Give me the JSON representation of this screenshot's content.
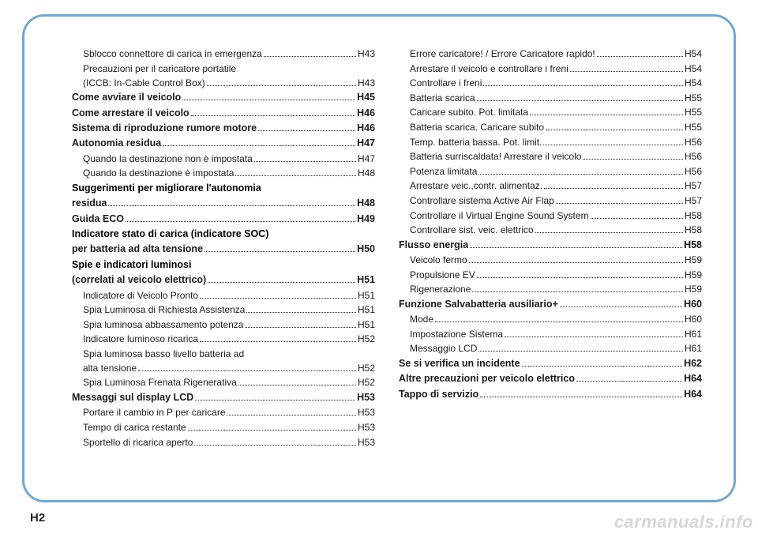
{
  "pageNumber": "H2",
  "watermark": "carmanuals.info",
  "frame_border_color": "#6fa8d6",
  "text_color": "#1a1a1a",
  "left": [
    {
      "type": "sub",
      "label": "Sblocco connettore di carica in emergenza",
      "page": "H43"
    },
    {
      "type": "sub-cont",
      "lines": [
        "Precauzioni per il caricatore portatile"
      ],
      "lastLabel": "(ICCB: In-Cable Control Box)",
      "page": "H43"
    },
    {
      "type": "main",
      "label": "Come avviare il veicolo",
      "page": "H45"
    },
    {
      "type": "main",
      "label": "Come arrestare il veicolo",
      "page": "H46"
    },
    {
      "type": "main",
      "label": "Sistema di riproduzione rumore motore",
      "page": "H46"
    },
    {
      "type": "main",
      "label": "Autonomia residua",
      "page": "H47"
    },
    {
      "type": "sub",
      "label": "Quando la destinazione non è impostata",
      "page": "H47"
    },
    {
      "type": "sub",
      "label": "Quando la destinazione è impostata",
      "page": "H48"
    },
    {
      "type": "main-cont",
      "lines": [
        "Suggerimenti per migliorare l'autonomia"
      ],
      "lastLabel": "residua",
      "page": "H48"
    },
    {
      "type": "main",
      "label": "Guida ECO",
      "page": "H49"
    },
    {
      "type": "main-cont",
      "lines": [
        "Indicatore stato di carica (indicatore SOC)"
      ],
      "lastLabel": "per batteria ad alta tensione",
      "page": "H50"
    },
    {
      "type": "main-cont",
      "lines": [
        "Spie e indicatori luminosi"
      ],
      "lastLabel": "(correlati al veicolo elettrico)",
      "page": "H51"
    },
    {
      "type": "sub",
      "label": "Indicatore di Veicolo Pronto",
      "page": "H51"
    },
    {
      "type": "sub",
      "label": "Spia Luminosa di Richiesta Assistenza",
      "page": "H51"
    },
    {
      "type": "sub",
      "label": "Spia luminosa abbassamento potenza ",
      "page": "H51"
    },
    {
      "type": "sub",
      "label": "Indicatore luminoso ricarica",
      "page": "H52"
    },
    {
      "type": "sub-cont",
      "lines": [
        "Spia luminosa basso livello batteria ad"
      ],
      "lastLabel": "alta tensione",
      "page": "H52"
    },
    {
      "type": "sub",
      "label": "Spia Luminosa Frenata Rigenerativa",
      "page": "H52"
    },
    {
      "type": "main",
      "label": "Messaggi sul display LCD",
      "page": "H53"
    },
    {
      "type": "sub",
      "label": "Portare il cambio in P per caricare",
      "page": "H53"
    },
    {
      "type": "sub",
      "label": "Tempo di carica restante",
      "page": "H53"
    },
    {
      "type": "sub",
      "label": "Sportello di ricarica aperto",
      "page": "H53"
    }
  ],
  "right": [
    {
      "type": "sub",
      "label": "Errore caricatore! / Errore Caricatore rapido!",
      "page": "H54"
    },
    {
      "type": "sub",
      "label": "Arrestare il veicolo e controllare i freni",
      "page": "H54"
    },
    {
      "type": "sub",
      "label": "Controllare i freni",
      "page": "H54"
    },
    {
      "type": "sub",
      "label": "Batteria scarica",
      "page": "H55"
    },
    {
      "type": "sub",
      "label": "Caricare subito. Pot. limitata",
      "page": "H55"
    },
    {
      "type": "sub",
      "label": "Batteria scarica. Caricare subito",
      "page": "H55"
    },
    {
      "type": "sub",
      "label": "Temp. batteria bassa. Pot. limit.",
      "page": "H56"
    },
    {
      "type": "sub",
      "label": "Batteria surriscaldata! Arrestare il veicolo",
      "page": "H56"
    },
    {
      "type": "sub",
      "label": "Potenza limitata",
      "page": "H56"
    },
    {
      "type": "sub",
      "label": "Arrestare veic.,contr. alimentaz.",
      "page": "H57"
    },
    {
      "type": "sub",
      "label": "Controllare sistema Active Air Flap",
      "page": "H57"
    },
    {
      "type": "sub",
      "label": "Controllare il Virtual Engine Sound System",
      "page": "H58"
    },
    {
      "type": "sub",
      "label": "Controllare sist. veic. elettrico",
      "page": "H58"
    },
    {
      "type": "main",
      "label": "Flusso energia",
      "page": "H58"
    },
    {
      "type": "sub",
      "label": "Veicolo fermo",
      "page": "H59"
    },
    {
      "type": "sub",
      "label": "Propulsione EV",
      "page": "H59"
    },
    {
      "type": "sub",
      "label": "Rigenerazione",
      "page": "H59"
    },
    {
      "type": "main",
      "label": "Funzione Salvabatteria ausiliario+",
      "page": "H60"
    },
    {
      "type": "sub",
      "label": "Mode",
      "page": "H60"
    },
    {
      "type": "sub",
      "label": "Impostazione Sistema",
      "page": "H61"
    },
    {
      "type": "sub",
      "label": "Messaggio LCD",
      "page": "H61"
    },
    {
      "type": "main",
      "label": "Se si verifica un incidente",
      "page": "H62"
    },
    {
      "type": "main",
      "label": "Altre precauzioni per veicolo elettrico",
      "page": "H64"
    },
    {
      "type": "main",
      "label": "Tappo di servizio",
      "page": "H64"
    }
  ]
}
